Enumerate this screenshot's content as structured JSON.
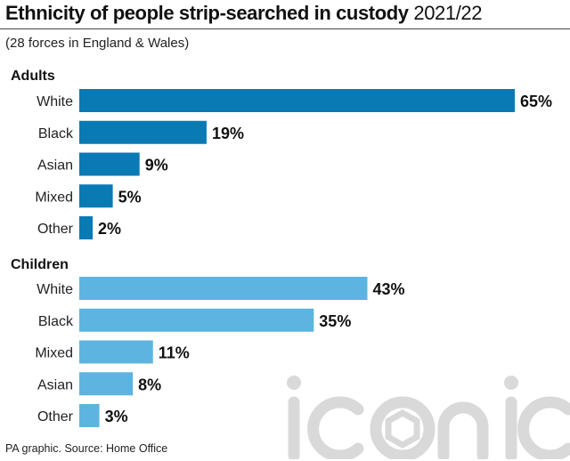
{
  "header": {
    "title_bold": "Ethnicity of people strip-searched in custody",
    "title_year": "2021/22",
    "subtitle": "(28 forces in England & Wales)"
  },
  "footer": {
    "source": "PA graphic. Source: Home Office"
  },
  "watermark": {
    "text": "iconic",
    "color": "#d9d9d9"
  },
  "chart_data": {
    "type": "bar",
    "orientation": "horizontal",
    "unit": "%",
    "xlim": [
      0,
      65
    ],
    "grid": false,
    "groups": [
      {
        "name": "Adults",
        "color": "#0a7ab5",
        "categories": [
          "White",
          "Black",
          "Asian",
          "Mixed",
          "Other"
        ],
        "values": [
          65,
          19,
          9,
          5,
          2
        ],
        "labels": [
          "65%",
          "19%",
          "9%",
          "5%",
          "2%"
        ]
      },
      {
        "name": "Children",
        "color": "#5db4e0",
        "categories": [
          "White",
          "Black",
          "Mixed",
          "Asian",
          "Other"
        ],
        "values": [
          43,
          35,
          11,
          8,
          3
        ],
        "labels": [
          "43%",
          "35%",
          "11%",
          "8%",
          "3%"
        ]
      }
    ]
  }
}
